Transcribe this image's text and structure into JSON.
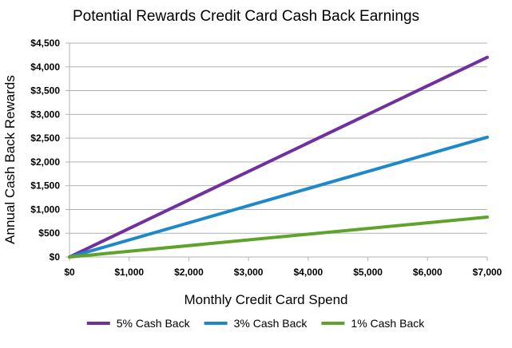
{
  "chart_data": {
    "type": "line",
    "title": "Potential Rewards Credit Card Cash Back Earnings",
    "xlabel": "Monthly Credit Card Spend",
    "ylabel": "Annual Cash Back Rewards",
    "x": [
      0,
      7000
    ],
    "xlim": [
      0,
      7000
    ],
    "ylim": [
      0,
      4500
    ],
    "x_ticks": [
      0,
      1000,
      2000,
      3000,
      4000,
      5000,
      6000,
      7000
    ],
    "x_tick_labels": [
      "$0",
      "$1,000",
      "$2,000",
      "$3,000",
      "$4,000",
      "$5,000",
      "$6,000",
      "$7,000"
    ],
    "y_ticks": [
      0,
      500,
      1000,
      1500,
      2000,
      2500,
      3000,
      3500,
      4000,
      4500
    ],
    "y_tick_labels": [
      "$0",
      "$500",
      "$1,000",
      "$1,500",
      "$2,000",
      "$2,500",
      "$3,000",
      "$3,500",
      "$4,000",
      "$4,500"
    ],
    "grid": "horizontal",
    "legend_position": "bottom",
    "series": [
      {
        "name": "5% Cash Back",
        "color": "#7030a0",
        "values": [
          0,
          4200
        ]
      },
      {
        "name": "3% Cash Back",
        "color": "#1f88c8",
        "values": [
          0,
          2520
        ]
      },
      {
        "name": "1% Cash Back",
        "color": "#5ea32a",
        "values": [
          0,
          840
        ]
      }
    ]
  }
}
